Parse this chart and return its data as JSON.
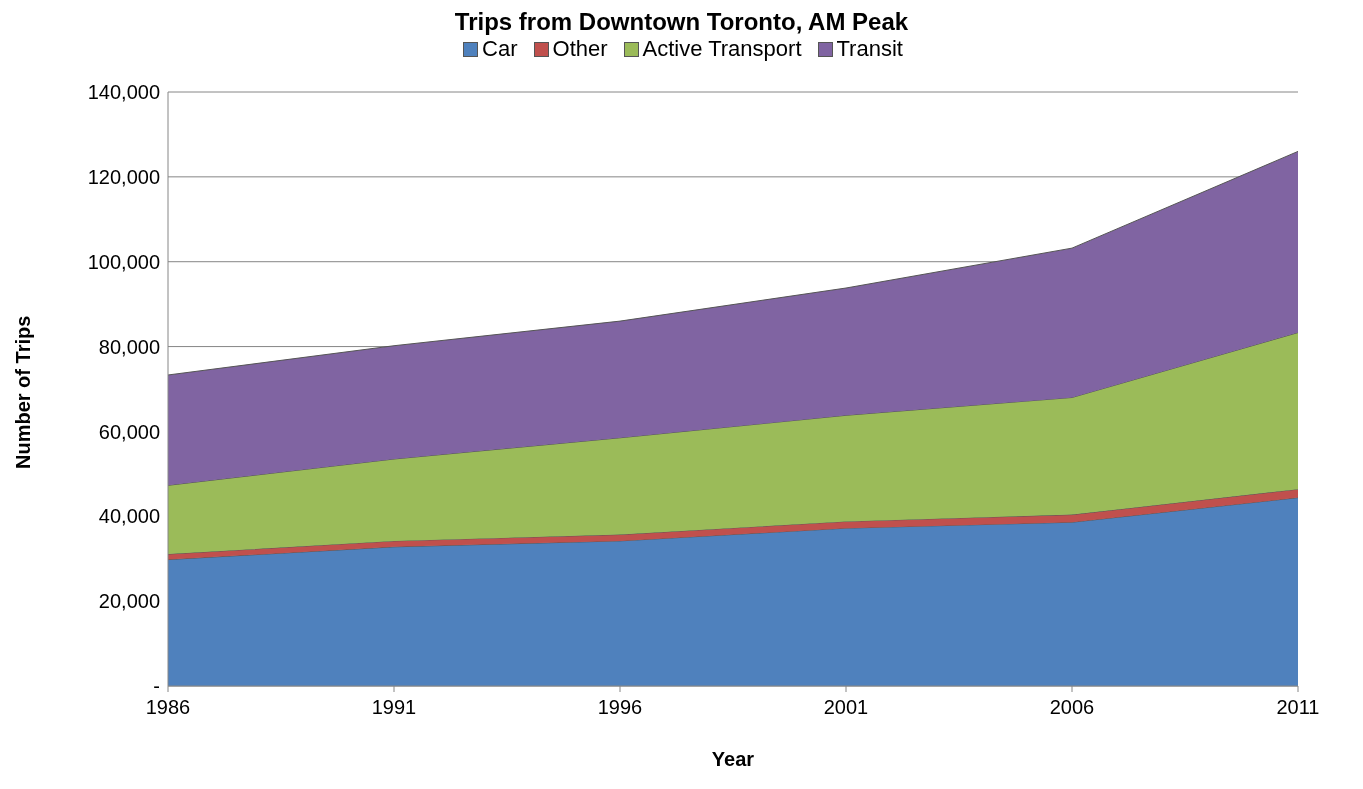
{
  "chart_data": {
    "type": "area",
    "title": "Trips from Downtown Toronto, AM Peak",
    "xlabel": "Year",
    "ylabel": "Number of Trips",
    "stacked": true,
    "legend": "top",
    "grid": "y",
    "x": [
      1986,
      1991,
      1996,
      2001,
      2006,
      2011
    ],
    "xlim": [
      1986,
      2011
    ],
    "xticks": [
      1986,
      1991,
      1996,
      2001,
      2006,
      2011
    ],
    "ylim": [
      0,
      140000
    ],
    "yticks": [
      {
        "value": 0,
        "label": "-"
      },
      {
        "value": 20000,
        "label": "20,000"
      },
      {
        "value": 40000,
        "label": "40,000"
      },
      {
        "value": 60000,
        "label": "60,000"
      },
      {
        "value": 80000,
        "label": "80,000"
      },
      {
        "value": 100000,
        "label": "100,000"
      },
      {
        "value": 120000,
        "label": "120,000"
      },
      {
        "value": 140000,
        "label": "140,000"
      }
    ],
    "series": [
      {
        "name": "Car",
        "color": "#4f81bd",
        "values": [
          29800,
          32800,
          34200,
          37200,
          38600,
          44400
        ]
      },
      {
        "name": "Other",
        "color": "#c0504d",
        "values": [
          1300,
          1400,
          1500,
          1600,
          1800,
          2000
        ]
      },
      {
        "name": "Active Transport",
        "color": "#9bbb59",
        "values": [
          16200,
          19300,
          22800,
          25000,
          27600,
          36900
        ]
      },
      {
        "name": "Transit",
        "color": "#8064a2",
        "values": [
          26000,
          26700,
          27500,
          30000,
          35200,
          42700
        ]
      }
    ]
  }
}
